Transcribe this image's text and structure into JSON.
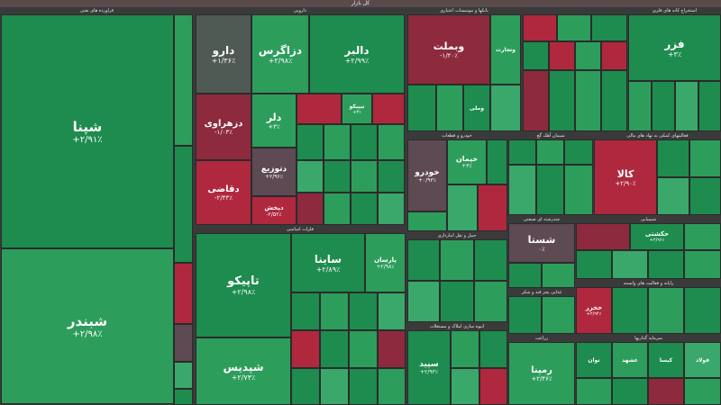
{
  "header": {
    "title": "کل بازار"
  },
  "colors": {
    "green": "#1e8c4f",
    "green_light": "#3aa86a",
    "red": "#b0283e",
    "red_dark": "#8d2a3e",
    "neutral": "#5d4a52"
  },
  "sectors": {
    "s1": "فراورده های نفتی",
    "s2": "دارویی",
    "s3": "بانکها و موسسات اعتباری",
    "s4": "استخراج کانه های فلزی",
    "s5": "خودرو و قطعات",
    "s6": "سیمان آهک گچ",
    "s7": "فعالیتهای کمکی به نهاد های مالی",
    "s8": "شیمیایی",
    "s9": "فلزات اساسی",
    "s10": "چندرشته ای صنعتی",
    "s11": "حمل و نقل انبارداری",
    "s12": "رایانه و فعالیت های وابسته",
    "s13": "غذایی بجز قند و شکر",
    "s14": "انبوه سازی املاک و مستغلات",
    "s15": "زراعت",
    "s16": "سرمایه گذاریها"
  },
  "tiles": {
    "shapna": {
      "name": "شپنا",
      "pct": "+۲/۹۱٪"
    },
    "shbandar": {
      "name": "شبندر",
      "pct": "+۲/۹۸٪"
    },
    "daru": {
      "name": "دارو",
      "pct": "+۱/۳۶٪"
    },
    "dazagros": {
      "name": "دزاگرس",
      "pct": "+۲/۹۸٪"
    },
    "dalbor": {
      "name": "دالبر",
      "pct": "+۲/۹۹٪"
    },
    "dzahravi": {
      "name": "دزهراوی",
      "pct": "-۱/۰۳٪"
    },
    "dolar": {
      "name": "دلر",
      "pct": "+۳٪"
    },
    "dtozia": {
      "name": "دتوزیع",
      "pct": "+۲/۹۶٪"
    },
    "daghazi": {
      "name": "دقاضی",
      "pct": "-۲/۴۳٪"
    },
    "dpakhsh": {
      "name": "دپخش",
      "pct": "-۲/۵۲٪"
    },
    "tipico": {
      "name": "تیپیکو",
      "pct": "+۳٪"
    },
    "vbemellat": {
      "name": "وبملت",
      "pct": "-۱/۲۰٪"
    },
    "vtejarat": {
      "name": "وتجارت",
      "pct": ""
    },
    "vmeli": {
      "name": "وملی",
      "pct": ""
    },
    "fuladh": {
      "name": "فولاد",
      "pct": ""
    },
    "fazar": {
      "name": "فزر",
      "pct": "+۳٪"
    },
    "khodro": {
      "name": "خودرو",
      "pct": "+۰/۹۳٪"
    },
    "kheyman": {
      "name": "خپمان",
      "pct": "+۳٪"
    },
    "kala": {
      "name": "کالا",
      "pct": "+۲/۹۰٪"
    },
    "shasta": {
      "name": "شستا",
      "pct": "۰٪"
    },
    "tapico": {
      "name": "تاپیکو",
      "pct": "+۲/۹۸٪"
    },
    "shepdis": {
      "name": "شپدیس",
      "pct": "+۲/۷۴٪"
    },
    "saina": {
      "name": "ساینا",
      "pct": "+۲/۸۹٪"
    },
    "parsan": {
      "name": "پارسان",
      "pct": "+۲/۹۸٪"
    },
    "sepid": {
      "name": "سپید",
      "pct": "+۲/۹۳٪"
    },
    "rapna": {
      "name": "رمپنا",
      "pct": "+۲/۴۶٪"
    },
    "tavan": {
      "name": "توان",
      "pct": ""
    },
    "ghasha": {
      "name": "غشهد",
      "pct": ""
    },
    "khazar": {
      "name": "حخزر",
      "pct": "+۲/۹۴٪"
    },
    "harkat": {
      "name": "حکشتی",
      "pct": "+۲/۹۶٪"
    },
    "kisa": {
      "name": "کیسا",
      "pct": ""
    }
  }
}
